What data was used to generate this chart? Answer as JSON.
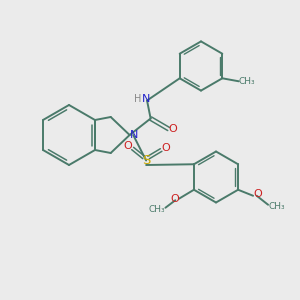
{
  "bg_color": "#ebebeb",
  "bond_color": "#4a7a6a",
  "n_color": "#2222cc",
  "o_color": "#cc2222",
  "s_color": "#ccaa00",
  "h_color": "#888888",
  "figsize": [
    3.0,
    3.0
  ],
  "dpi": 100,
  "xlim": [
    0,
    10
  ],
  "ylim": [
    0,
    10
  ]
}
